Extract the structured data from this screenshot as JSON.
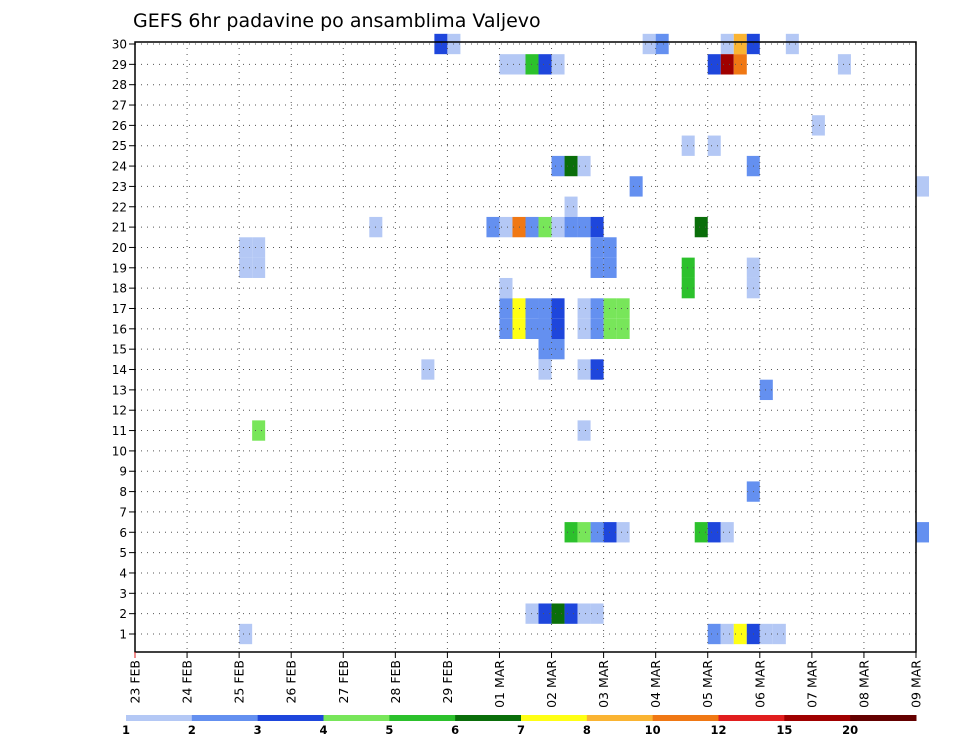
{
  "chart_data": {
    "type": "heatmap",
    "title": "GEFS 6hr padavine po ansamblima Valjevo",
    "xlabel": "",
    "ylabel": "",
    "ylim": [
      1,
      30
    ],
    "y_ticks": [
      "1",
      "2",
      "3",
      "4",
      "5",
      "6",
      "7",
      "8",
      "9",
      "10",
      "11",
      "12",
      "13",
      "14",
      "15",
      "16",
      "17",
      "18",
      "19",
      "20",
      "21",
      "22",
      "23",
      "24",
      "25",
      "26",
      "27",
      "28",
      "29",
      "30"
    ],
    "x_ticks": [
      "23 FEB",
      "24 FEB",
      "25 FEB",
      "26 FEB",
      "27 FEB",
      "28 FEB",
      "29 FEB",
      "01 MAR",
      "02 MAR",
      "03 MAR",
      "04 MAR",
      "05 MAR",
      "06 MAR",
      "07 MAR",
      "08 MAR",
      "09 MAR"
    ],
    "x_step_hours": 6,
    "grid": true,
    "legend": {
      "placement": "bottom",
      "labels": [
        "1",
        "2",
        "3",
        "4",
        "5",
        "6",
        "7",
        "8",
        "10",
        "12",
        "15",
        "20"
      ],
      "colors": [
        "#b4c8f5",
        "#6490f0",
        "#1e46dc",
        "#78e65a",
        "#2cc12c",
        "#0a6e0a",
        "#ffff14",
        "#fab432",
        "#f07814",
        "#e11e1e",
        "#a00000",
        "#640000"
      ]
    },
    "cells": [
      {
        "member": 30,
        "time": "28 FEB 18Z",
        "bin": 3
      },
      {
        "member": 30,
        "time": "29 FEB 00Z",
        "bin": 1
      },
      {
        "member": 30,
        "time": "03 MAR 18Z",
        "bin": 1
      },
      {
        "member": 30,
        "time": "04 MAR 00Z",
        "bin": 2
      },
      {
        "member": 30,
        "time": "05 MAR 06Z",
        "bin": 1
      },
      {
        "member": 30,
        "time": "05 MAR 12Z",
        "bin": 8
      },
      {
        "member": 30,
        "time": "05 MAR 18Z",
        "bin": 3
      },
      {
        "member": 30,
        "time": "06 MAR 12Z",
        "bin": 1
      },
      {
        "member": 29,
        "time": "01 MAR 00Z",
        "bin": 1
      },
      {
        "member": 29,
        "time": "01 MAR 06Z",
        "bin": 1
      },
      {
        "member": 29,
        "time": "01 MAR 12Z",
        "bin": 5
      },
      {
        "member": 29,
        "time": "01 MAR 18Z",
        "bin": 3
      },
      {
        "member": 29,
        "time": "02 MAR 00Z",
        "bin": 1
      },
      {
        "member": 29,
        "time": "05 MAR 00Z",
        "bin": 3
      },
      {
        "member": 29,
        "time": "05 MAR 06Z",
        "bin": 15
      },
      {
        "member": 29,
        "time": "05 MAR 12Z",
        "bin": 10
      },
      {
        "member": 29,
        "time": "07 MAR 12Z",
        "bin": 1
      },
      {
        "member": 26,
        "time": "07 MAR 00Z",
        "bin": 1
      },
      {
        "member": 25,
        "time": "04 MAR 12Z",
        "bin": 1
      },
      {
        "member": 25,
        "time": "05 MAR 00Z",
        "bin": 1
      },
      {
        "member": 24,
        "time": "02 MAR 00Z",
        "bin": 2
      },
      {
        "member": 24,
        "time": "02 MAR 06Z",
        "bin": 6
      },
      {
        "member": 24,
        "time": "02 MAR 12Z",
        "bin": 1
      },
      {
        "member": 24,
        "time": "05 MAR 18Z",
        "bin": 2
      },
      {
        "member": 23,
        "time": "03 MAR 12Z",
        "bin": 2
      },
      {
        "member": 23,
        "time": "09 MAR 00Z",
        "bin": 1
      },
      {
        "member": 22,
        "time": "02 MAR 06Z",
        "bin": 1
      },
      {
        "member": 21,
        "time": "27 FEB 12Z",
        "bin": 1
      },
      {
        "member": 21,
        "time": "29 FEB 18Z",
        "bin": 2
      },
      {
        "member": 21,
        "time": "01 MAR 00Z",
        "bin": 1
      },
      {
        "member": 21,
        "time": "01 MAR 06Z",
        "bin": 10
      },
      {
        "member": 21,
        "time": "01 MAR 12Z",
        "bin": 2
      },
      {
        "member": 21,
        "time": "01 MAR 18Z",
        "bin": 4
      },
      {
        "member": 21,
        "time": "02 MAR 00Z",
        "bin": 1
      },
      {
        "member": 21,
        "time": "02 MAR 06Z",
        "bin": 2
      },
      {
        "member": 21,
        "time": "02 MAR 12Z",
        "bin": 2
      },
      {
        "member": 21,
        "time": "02 MAR 18Z",
        "bin": 3
      },
      {
        "member": 21,
        "time": "04 MAR 18Z",
        "bin": 6
      },
      {
        "member": 20,
        "time": "25 FEB 00Z",
        "bin": 1
      },
      {
        "member": 20,
        "time": "25 FEB 06Z",
        "bin": 1
      },
      {
        "member": 20,
        "time": "02 MAR 18Z",
        "bin": 2
      },
      {
        "member": 20,
        "time": "03 MAR 00Z",
        "bin": 2
      },
      {
        "member": 19,
        "time": "25 FEB 00Z",
        "bin": 1
      },
      {
        "member": 19,
        "time": "25 FEB 06Z",
        "bin": 1
      },
      {
        "member": 19,
        "time": "02 MAR 18Z",
        "bin": 2
      },
      {
        "member": 19,
        "time": "03 MAR 00Z",
        "bin": 2
      },
      {
        "member": 19,
        "time": "04 MAR 12Z",
        "bin": 5
      },
      {
        "member": 19,
        "time": "05 MAR 18Z",
        "bin": 1
      },
      {
        "member": 18,
        "time": "04 MAR 12Z",
        "bin": 5
      },
      {
        "member": 18,
        "time": "05 MAR 18Z",
        "bin": 1
      },
      {
        "member": 18,
        "time": "01 MAR 00Z",
        "bin": 1
      },
      {
        "member": 17,
        "time": "01 MAR 00Z",
        "bin": 2
      },
      {
        "member": 17,
        "time": "01 MAR 06Z",
        "bin": 7
      },
      {
        "member": 17,
        "time": "01 MAR 12Z",
        "bin": 2
      },
      {
        "member": 17,
        "time": "01 MAR 18Z",
        "bin": 2
      },
      {
        "member": 17,
        "time": "02 MAR 00Z",
        "bin": 3
      },
      {
        "member": 17,
        "time": "02 MAR 12Z",
        "bin": 1
      },
      {
        "member": 17,
        "time": "02 MAR 18Z",
        "bin": 2
      },
      {
        "member": 17,
        "time": "03 MAR 00Z",
        "bin": 4
      },
      {
        "member": 17,
        "time": "03 MAR 06Z",
        "bin": 4
      },
      {
        "member": 16,
        "time": "01 MAR 00Z",
        "bin": 2
      },
      {
        "member": 16,
        "time": "01 MAR 06Z",
        "bin": 7
      },
      {
        "member": 16,
        "time": "01 MAR 12Z",
        "bin": 2
      },
      {
        "member": 16,
        "time": "01 MAR 18Z",
        "bin": 2
      },
      {
        "member": 16,
        "time": "02 MAR 00Z",
        "bin": 3
      },
      {
        "member": 16,
        "time": "02 MAR 12Z",
        "bin": 1
      },
      {
        "member": 16,
        "time": "02 MAR 18Z",
        "bin": 2
      },
      {
        "member": 16,
        "time": "03 MAR 00Z",
        "bin": 4
      },
      {
        "member": 16,
        "time": "03 MAR 06Z",
        "bin": 4
      },
      {
        "member": 16,
        "time": "01 MAR 18Z",
        "bin": 2
      },
      {
        "member": 15,
        "time": "01 MAR 18Z",
        "bin": 2
      },
      {
        "member": 15,
        "time": "02 MAR 00Z",
        "bin": 2
      },
      {
        "member": 14,
        "time": "28 FEB 12Z",
        "bin": 1
      },
      {
        "member": 14,
        "time": "01 MAR 18Z",
        "bin": 1
      },
      {
        "member": 14,
        "time": "02 MAR 12Z",
        "bin": 1
      },
      {
        "member": 14,
        "time": "02 MAR 18Z",
        "bin": 3
      },
      {
        "member": 13,
        "time": "06 MAR 00Z",
        "bin": 2
      },
      {
        "member": 11,
        "time": "25 FEB 06Z",
        "bin": 4
      },
      {
        "member": 11,
        "time": "02 MAR 12Z",
        "bin": 1
      },
      {
        "member": 8,
        "time": "05 MAR 18Z",
        "bin": 2
      },
      {
        "member": 6,
        "time": "02 MAR 06Z",
        "bin": 5
      },
      {
        "member": 6,
        "time": "02 MAR 12Z",
        "bin": 4
      },
      {
        "member": 6,
        "time": "02 MAR 18Z",
        "bin": 2
      },
      {
        "member": 6,
        "time": "03 MAR 00Z",
        "bin": 3
      },
      {
        "member": 6,
        "time": "03 MAR 06Z",
        "bin": 1
      },
      {
        "member": 6,
        "time": "04 MAR 18Z",
        "bin": 5
      },
      {
        "member": 6,
        "time": "05 MAR 00Z",
        "bin": 3
      },
      {
        "member": 6,
        "time": "05 MAR 06Z",
        "bin": 1
      },
      {
        "member": 6,
        "time": "09 MAR 00Z",
        "bin": 2
      },
      {
        "member": 2,
        "time": "01 MAR 12Z",
        "bin": 1
      },
      {
        "member": 2,
        "time": "01 MAR 18Z",
        "bin": 3
      },
      {
        "member": 2,
        "time": "02 MAR 00Z",
        "bin": 6
      },
      {
        "member": 2,
        "time": "02 MAR 06Z",
        "bin": 3
      },
      {
        "member": 2,
        "time": "02 MAR 12Z",
        "bin": 1
      },
      {
        "member": 2,
        "time": "02 MAR 18Z",
        "bin": 1
      },
      {
        "member": 1,
        "time": "25 FEB 00Z",
        "bin": 1
      },
      {
        "member": 1,
        "time": "05 MAR 00Z",
        "bin": 2
      },
      {
        "member": 1,
        "time": "05 MAR 06Z",
        "bin": 1
      },
      {
        "member": 1,
        "time": "05 MAR 12Z",
        "bin": 7
      },
      {
        "member": 1,
        "time": "05 MAR 18Z",
        "bin": 3
      },
      {
        "member": 1,
        "time": "06 MAR 00Z",
        "bin": 1
      },
      {
        "member": 1,
        "time": "06 MAR 06Z",
        "bin": 1
      }
    ]
  }
}
